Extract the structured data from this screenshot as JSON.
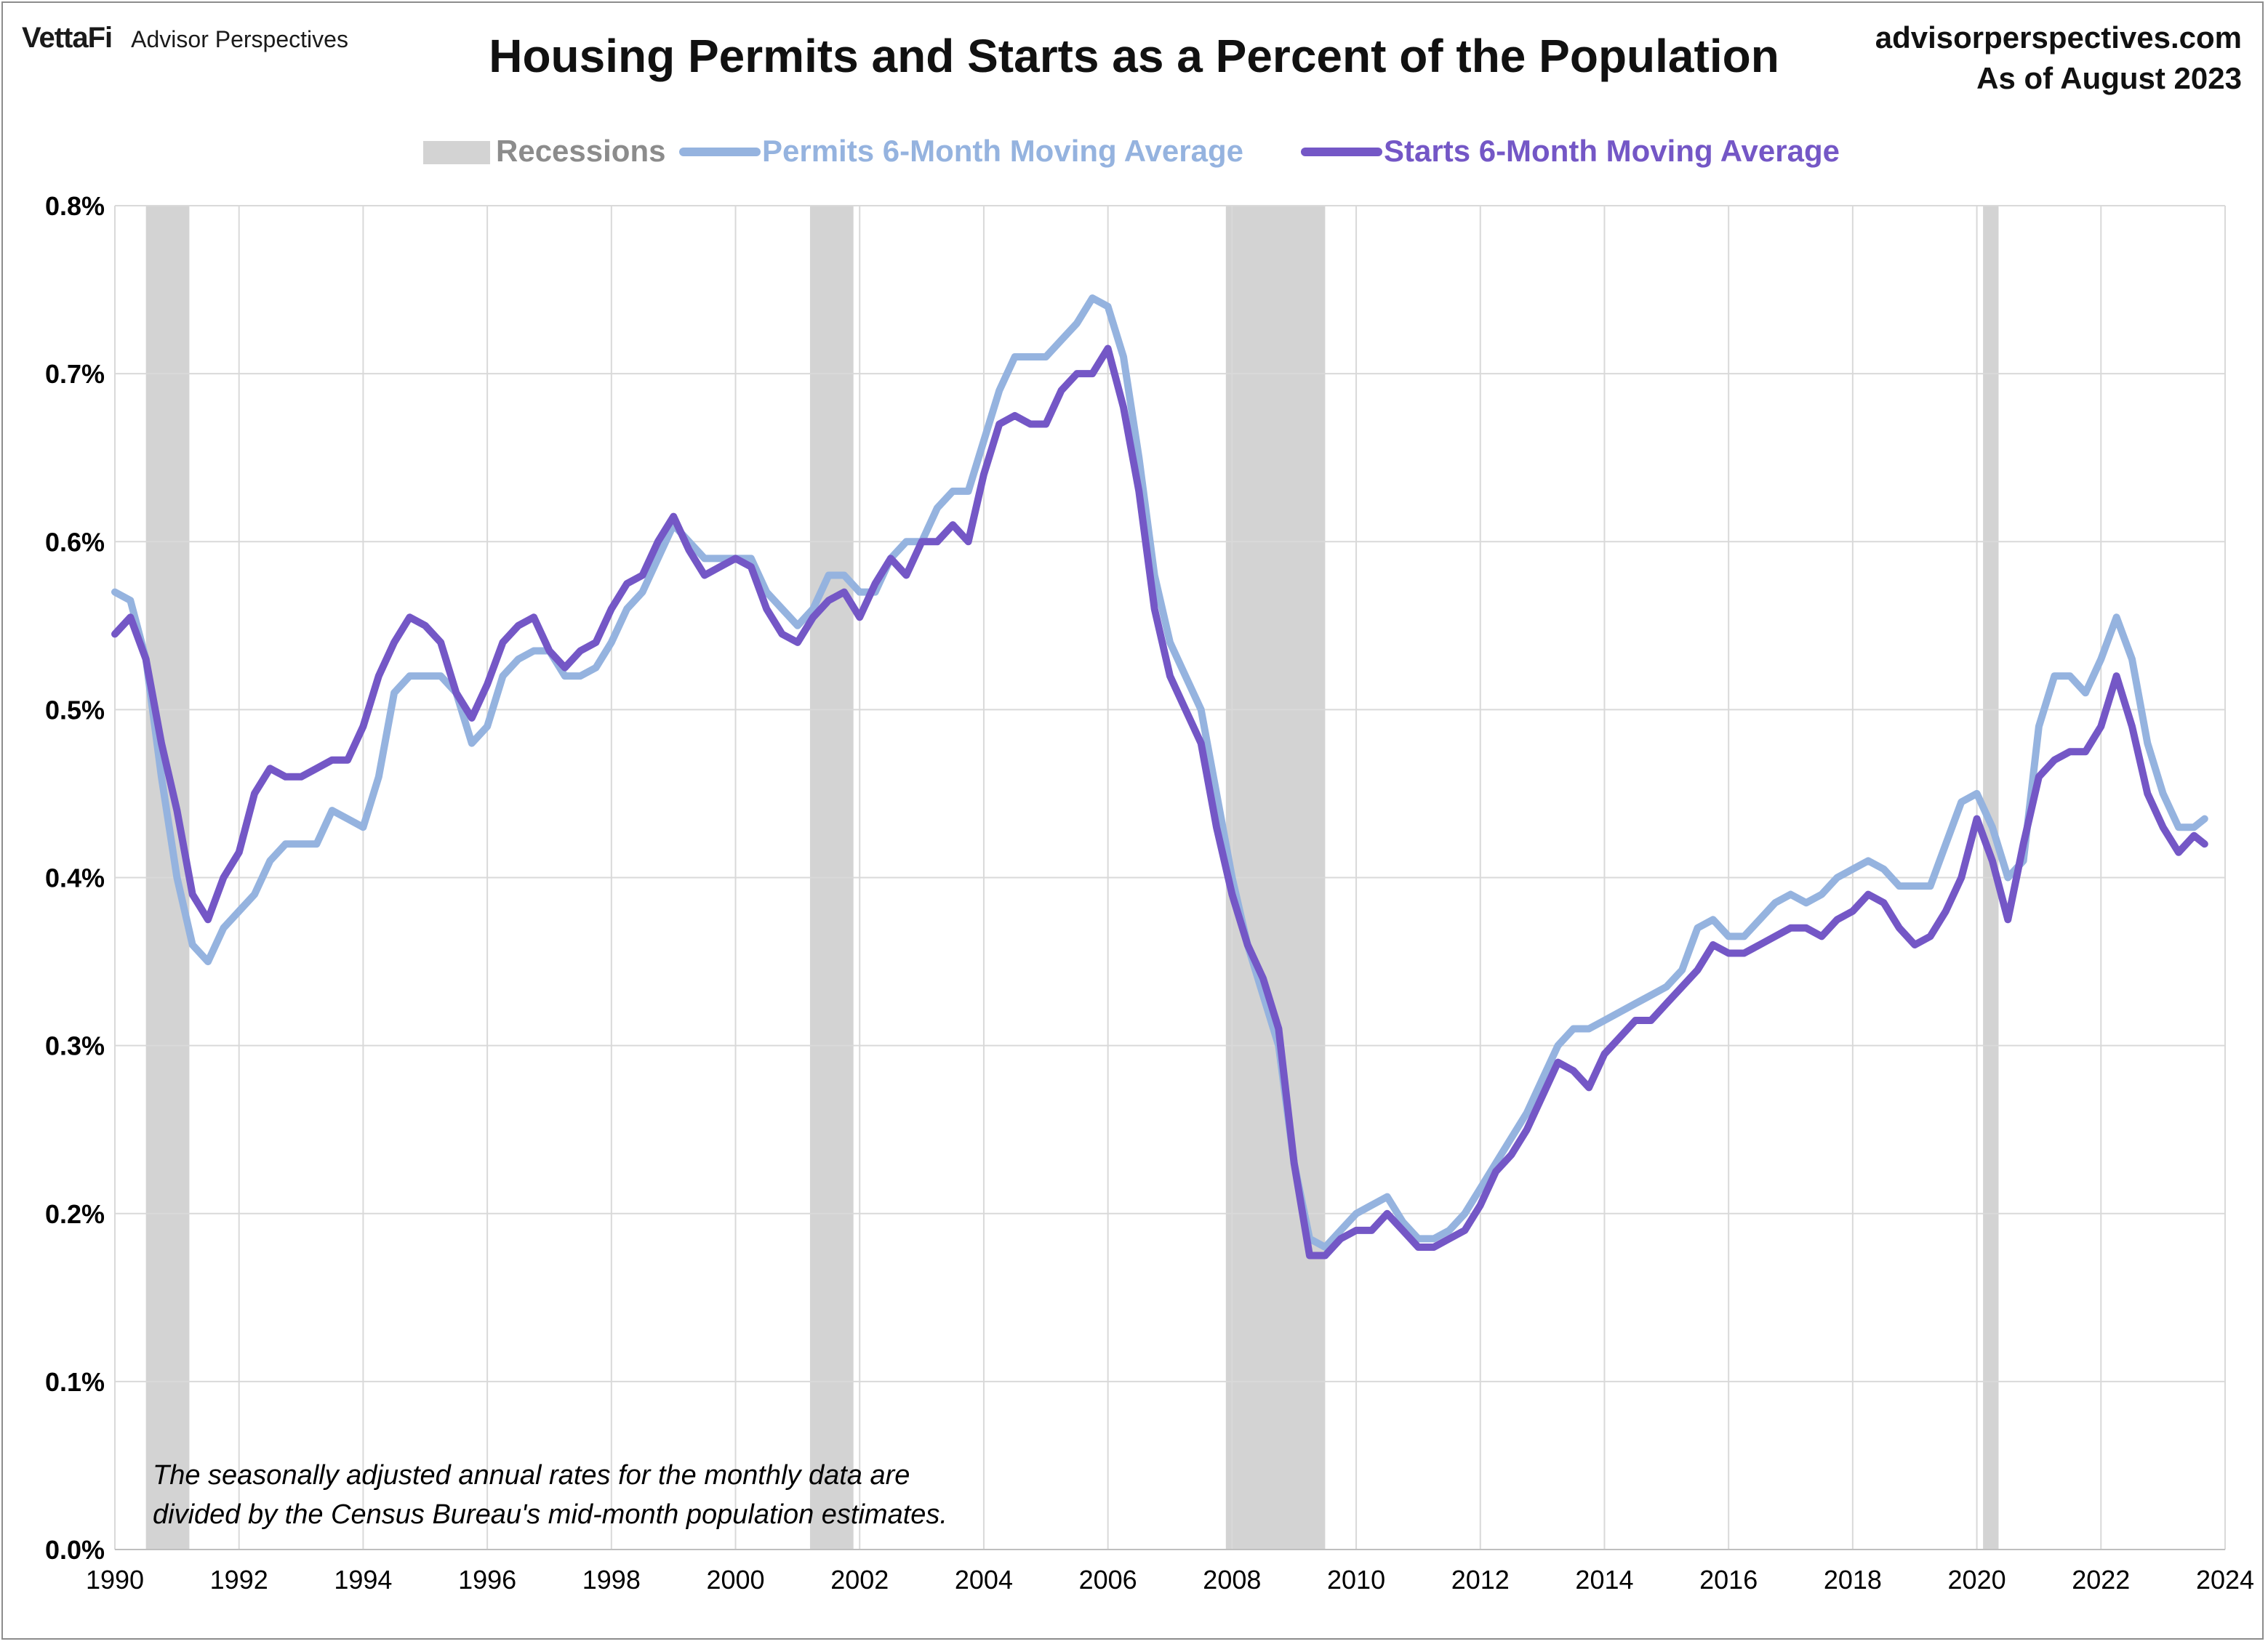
{
  "header": {
    "brand_logo": "VettaFi",
    "brand_sub": "Advisor Perspectives",
    "title": "Housing Permits and Starts as a Percent of the Population",
    "source_url": "advisorperspectives.com",
    "as_of": "As of August 2023"
  },
  "colors": {
    "permits": "#95b3df",
    "starts": "#7457c6",
    "recession": "#d3d3d3",
    "grid": "#d9d9d9"
  },
  "chart_data": {
    "type": "line",
    "title": "Housing Permits and Starts as a Percent of the Population",
    "xlabel": "",
    "ylabel": "",
    "xlim": [
      1990,
      2024
    ],
    "ylim": [
      0,
      0.8
    ],
    "x_ticks": [
      "1990",
      "1992",
      "1994",
      "1996",
      "1998",
      "2000",
      "2002",
      "2004",
      "2006",
      "2008",
      "2010",
      "2012",
      "2014",
      "2016",
      "2018",
      "2020",
      "2022",
      "2024"
    ],
    "y_ticks": [
      "0.0%",
      "0.1%",
      "0.2%",
      "0.3%",
      "0.4%",
      "0.5%",
      "0.6%",
      "0.7%",
      "0.8%"
    ],
    "legend": {
      "placement": "top-center",
      "recessions_label": "Recessions",
      "permits_label": "Permits 6-Month Moving Average",
      "starts_label": "Starts 6-Month Moving Average"
    },
    "recessions": [
      [
        1990.5,
        1991.2
      ],
      [
        2001.2,
        2001.9
      ],
      [
        2007.9,
        2009.5
      ],
      [
        2020.1,
        2020.35
      ]
    ],
    "series": [
      {
        "name": "Permits 6-Month Moving Average",
        "points": [
          [
            1990.0,
            0.57
          ],
          [
            1990.25,
            0.565
          ],
          [
            1990.5,
            0.53
          ],
          [
            1990.75,
            0.46
          ],
          [
            1991.0,
            0.4
          ],
          [
            1991.25,
            0.36
          ],
          [
            1991.5,
            0.35
          ],
          [
            1991.75,
            0.37
          ],
          [
            1992.0,
            0.38
          ],
          [
            1992.25,
            0.39
          ],
          [
            1992.5,
            0.41
          ],
          [
            1992.75,
            0.42
          ],
          [
            1993.0,
            0.42
          ],
          [
            1993.25,
            0.42
          ],
          [
            1993.5,
            0.44
          ],
          [
            1993.75,
            0.435
          ],
          [
            1994.0,
            0.43
          ],
          [
            1994.25,
            0.46
          ],
          [
            1994.5,
            0.51
          ],
          [
            1994.75,
            0.52
          ],
          [
            1995.0,
            0.52
          ],
          [
            1995.25,
            0.52
          ],
          [
            1995.5,
            0.51
          ],
          [
            1995.75,
            0.48
          ],
          [
            1996.0,
            0.49
          ],
          [
            1996.25,
            0.52
          ],
          [
            1996.5,
            0.53
          ],
          [
            1996.75,
            0.535
          ],
          [
            1997.0,
            0.535
          ],
          [
            1997.25,
            0.52
          ],
          [
            1997.5,
            0.52
          ],
          [
            1997.75,
            0.525
          ],
          [
            1998.0,
            0.54
          ],
          [
            1998.25,
            0.56
          ],
          [
            1998.5,
            0.57
          ],
          [
            1998.75,
            0.59
          ],
          [
            1999.0,
            0.61
          ],
          [
            1999.25,
            0.6
          ],
          [
            1999.5,
            0.59
          ],
          [
            1999.75,
            0.59
          ],
          [
            2000.0,
            0.59
          ],
          [
            2000.25,
            0.59
          ],
          [
            2000.5,
            0.57
          ],
          [
            2000.75,
            0.56
          ],
          [
            2001.0,
            0.55
          ],
          [
            2001.25,
            0.56
          ],
          [
            2001.5,
            0.58
          ],
          [
            2001.75,
            0.58
          ],
          [
            2002.0,
            0.57
          ],
          [
            2002.25,
            0.57
          ],
          [
            2002.5,
            0.59
          ],
          [
            2002.75,
            0.6
          ],
          [
            2003.0,
            0.6
          ],
          [
            2003.25,
            0.62
          ],
          [
            2003.5,
            0.63
          ],
          [
            2003.75,
            0.63
          ],
          [
            2004.0,
            0.66
          ],
          [
            2004.25,
            0.69
          ],
          [
            2004.5,
            0.71
          ],
          [
            2004.75,
            0.71
          ],
          [
            2005.0,
            0.71
          ],
          [
            2005.25,
            0.72
          ],
          [
            2005.5,
            0.73
          ],
          [
            2005.75,
            0.745
          ],
          [
            2006.0,
            0.74
          ],
          [
            2006.25,
            0.71
          ],
          [
            2006.5,
            0.65
          ],
          [
            2006.75,
            0.58
          ],
          [
            2007.0,
            0.54
          ],
          [
            2007.25,
            0.52
          ],
          [
            2007.5,
            0.5
          ],
          [
            2007.75,
            0.45
          ],
          [
            2008.0,
            0.4
          ],
          [
            2008.25,
            0.36
          ],
          [
            2008.5,
            0.33
          ],
          [
            2008.75,
            0.3
          ],
          [
            2009.0,
            0.23
          ],
          [
            2009.25,
            0.185
          ],
          [
            2009.5,
            0.18
          ],
          [
            2009.75,
            0.19
          ],
          [
            2010.0,
            0.2
          ],
          [
            2010.25,
            0.205
          ],
          [
            2010.5,
            0.21
          ],
          [
            2010.75,
            0.195
          ],
          [
            2011.0,
            0.185
          ],
          [
            2011.25,
            0.185
          ],
          [
            2011.5,
            0.19
          ],
          [
            2011.75,
            0.2
          ],
          [
            2012.0,
            0.215
          ],
          [
            2012.25,
            0.23
          ],
          [
            2012.5,
            0.245
          ],
          [
            2012.75,
            0.26
          ],
          [
            2013.0,
            0.28
          ],
          [
            2013.25,
            0.3
          ],
          [
            2013.5,
            0.31
          ],
          [
            2013.75,
            0.31
          ],
          [
            2014.0,
            0.315
          ],
          [
            2014.25,
            0.32
          ],
          [
            2014.5,
            0.325
          ],
          [
            2014.75,
            0.33
          ],
          [
            2015.0,
            0.335
          ],
          [
            2015.25,
            0.345
          ],
          [
            2015.5,
            0.37
          ],
          [
            2015.75,
            0.375
          ],
          [
            2016.0,
            0.365
          ],
          [
            2016.25,
            0.365
          ],
          [
            2016.5,
            0.375
          ],
          [
            2016.75,
            0.385
          ],
          [
            2017.0,
            0.39
          ],
          [
            2017.25,
            0.385
          ],
          [
            2017.5,
            0.39
          ],
          [
            2017.75,
            0.4
          ],
          [
            2018.0,
            0.405
          ],
          [
            2018.25,
            0.41
          ],
          [
            2018.5,
            0.405
          ],
          [
            2018.75,
            0.395
          ],
          [
            2019.0,
            0.395
          ],
          [
            2019.25,
            0.395
          ],
          [
            2019.5,
            0.42
          ],
          [
            2019.75,
            0.445
          ],
          [
            2020.0,
            0.45
          ],
          [
            2020.25,
            0.43
          ],
          [
            2020.5,
            0.4
          ],
          [
            2020.75,
            0.41
          ],
          [
            2021.0,
            0.49
          ],
          [
            2021.25,
            0.52
          ],
          [
            2021.5,
            0.52
          ],
          [
            2021.75,
            0.51
          ],
          [
            2022.0,
            0.53
          ],
          [
            2022.25,
            0.555
          ],
          [
            2022.5,
            0.53
          ],
          [
            2022.75,
            0.48
          ],
          [
            2023.0,
            0.45
          ],
          [
            2023.25,
            0.43
          ],
          [
            2023.5,
            0.43
          ],
          [
            2023.67,
            0.435
          ]
        ]
      },
      {
        "name": "Starts 6-Month Moving Average",
        "points": [
          [
            1990.0,
            0.545
          ],
          [
            1990.25,
            0.555
          ],
          [
            1990.5,
            0.53
          ],
          [
            1990.75,
            0.48
          ],
          [
            1991.0,
            0.44
          ],
          [
            1991.25,
            0.39
          ],
          [
            1991.5,
            0.375
          ],
          [
            1991.75,
            0.4
          ],
          [
            1992.0,
            0.415
          ],
          [
            1992.25,
            0.45
          ],
          [
            1992.5,
            0.465
          ],
          [
            1992.75,
            0.46
          ],
          [
            1993.0,
            0.46
          ],
          [
            1993.25,
            0.465
          ],
          [
            1993.5,
            0.47
          ],
          [
            1993.75,
            0.47
          ],
          [
            1994.0,
            0.49
          ],
          [
            1994.25,
            0.52
          ],
          [
            1994.5,
            0.54
          ],
          [
            1994.75,
            0.555
          ],
          [
            1995.0,
            0.55
          ],
          [
            1995.25,
            0.54
          ],
          [
            1995.5,
            0.51
          ],
          [
            1995.75,
            0.495
          ],
          [
            1996.0,
            0.515
          ],
          [
            1996.25,
            0.54
          ],
          [
            1996.5,
            0.55
          ],
          [
            1996.75,
            0.555
          ],
          [
            1997.0,
            0.535
          ],
          [
            1997.25,
            0.525
          ],
          [
            1997.5,
            0.535
          ],
          [
            1997.75,
            0.54
          ],
          [
            1998.0,
            0.56
          ],
          [
            1998.25,
            0.575
          ],
          [
            1998.5,
            0.58
          ],
          [
            1998.75,
            0.6
          ],
          [
            1999.0,
            0.615
          ],
          [
            1999.25,
            0.595
          ],
          [
            1999.5,
            0.58
          ],
          [
            1999.75,
            0.585
          ],
          [
            2000.0,
            0.59
          ],
          [
            2000.25,
            0.585
          ],
          [
            2000.5,
            0.56
          ],
          [
            2000.75,
            0.545
          ],
          [
            2001.0,
            0.54
          ],
          [
            2001.25,
            0.555
          ],
          [
            2001.5,
            0.565
          ],
          [
            2001.75,
            0.57
          ],
          [
            2002.0,
            0.555
          ],
          [
            2002.25,
            0.575
          ],
          [
            2002.5,
            0.59
          ],
          [
            2002.75,
            0.58
          ],
          [
            2003.0,
            0.6
          ],
          [
            2003.25,
            0.6
          ],
          [
            2003.5,
            0.61
          ],
          [
            2003.75,
            0.6
          ],
          [
            2004.0,
            0.64
          ],
          [
            2004.25,
            0.67
          ],
          [
            2004.5,
            0.675
          ],
          [
            2004.75,
            0.67
          ],
          [
            2005.0,
            0.67
          ],
          [
            2005.25,
            0.69
          ],
          [
            2005.5,
            0.7
          ],
          [
            2005.75,
            0.7
          ],
          [
            2006.0,
            0.715
          ],
          [
            2006.25,
            0.68
          ],
          [
            2006.5,
            0.63
          ],
          [
            2006.75,
            0.56
          ],
          [
            2007.0,
            0.52
          ],
          [
            2007.25,
            0.5
          ],
          [
            2007.5,
            0.48
          ],
          [
            2007.75,
            0.43
          ],
          [
            2008.0,
            0.39
          ],
          [
            2008.25,
            0.36
          ],
          [
            2008.5,
            0.34
          ],
          [
            2008.75,
            0.31
          ],
          [
            2009.0,
            0.23
          ],
          [
            2009.25,
            0.175
          ],
          [
            2009.5,
            0.175
          ],
          [
            2009.75,
            0.185
          ],
          [
            2010.0,
            0.19
          ],
          [
            2010.25,
            0.19
          ],
          [
            2010.5,
            0.2
          ],
          [
            2010.75,
            0.19
          ],
          [
            2011.0,
            0.18
          ],
          [
            2011.25,
            0.18
          ],
          [
            2011.5,
            0.185
          ],
          [
            2011.75,
            0.19
          ],
          [
            2012.0,
            0.205
          ],
          [
            2012.25,
            0.225
          ],
          [
            2012.5,
            0.235
          ],
          [
            2012.75,
            0.25
          ],
          [
            2013.0,
            0.27
          ],
          [
            2013.25,
            0.29
          ],
          [
            2013.5,
            0.285
          ],
          [
            2013.75,
            0.275
          ],
          [
            2014.0,
            0.295
          ],
          [
            2014.25,
            0.305
          ],
          [
            2014.5,
            0.315
          ],
          [
            2014.75,
            0.315
          ],
          [
            2015.0,
            0.325
          ],
          [
            2015.25,
            0.335
          ],
          [
            2015.5,
            0.345
          ],
          [
            2015.75,
            0.36
          ],
          [
            2016.0,
            0.355
          ],
          [
            2016.25,
            0.355
          ],
          [
            2016.5,
            0.36
          ],
          [
            2016.75,
            0.365
          ],
          [
            2017.0,
            0.37
          ],
          [
            2017.25,
            0.37
          ],
          [
            2017.5,
            0.365
          ],
          [
            2017.75,
            0.375
          ],
          [
            2018.0,
            0.38
          ],
          [
            2018.25,
            0.39
          ],
          [
            2018.5,
            0.385
          ],
          [
            2018.75,
            0.37
          ],
          [
            2019.0,
            0.36
          ],
          [
            2019.25,
            0.365
          ],
          [
            2019.5,
            0.38
          ],
          [
            2019.75,
            0.4
          ],
          [
            2020.0,
            0.435
          ],
          [
            2020.25,
            0.41
          ],
          [
            2020.5,
            0.375
          ],
          [
            2020.75,
            0.42
          ],
          [
            2021.0,
            0.46
          ],
          [
            2021.25,
            0.47
          ],
          [
            2021.5,
            0.475
          ],
          [
            2021.75,
            0.475
          ],
          [
            2022.0,
            0.49
          ],
          [
            2022.25,
            0.52
          ],
          [
            2022.5,
            0.49
          ],
          [
            2022.75,
            0.45
          ],
          [
            2023.0,
            0.43
          ],
          [
            2023.25,
            0.415
          ],
          [
            2023.5,
            0.425
          ],
          [
            2023.67,
            0.42
          ]
        ]
      }
    ]
  },
  "note": {
    "line1": "The seasonally adjusted annual rates for the monthly data are",
    "line2": "divided by the Census Bureau's mid-month population estimates."
  }
}
